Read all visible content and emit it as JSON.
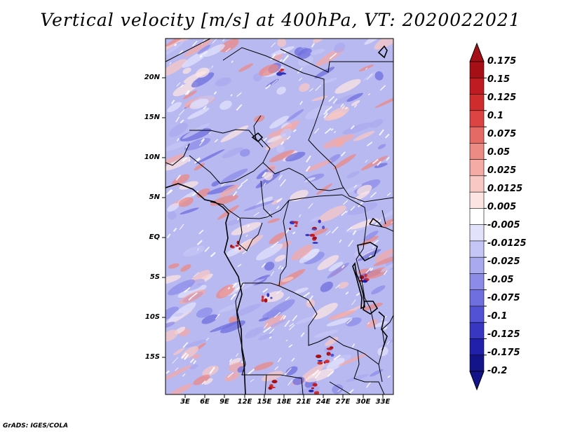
{
  "title": "Vertical velocity [m/s] at 400hPa, VT: 2020022021",
  "credit": "GrADS: IGES/COLA",
  "map": {
    "y_tick_labels": [
      "20N",
      "15N",
      "10N",
      "5N",
      "EQ",
      "5S",
      "10S",
      "15S"
    ],
    "x_tick_labels": [
      "3E",
      "6E",
      "9E",
      "12E",
      "15E",
      "18E",
      "21E",
      "24E",
      "27E",
      "30E",
      "33E"
    ]
  },
  "colorbar": {
    "labels": [
      "0.175",
      "0.15",
      "0.125",
      "0.1",
      "0.075",
      "0.05",
      "0.025",
      "0.0125",
      "0.005",
      "-0.005",
      "-0.0125",
      "-0.025",
      "-0.05",
      "-0.075",
      "-0.1",
      "-0.125",
      "-0.175",
      "-0.2"
    ],
    "colors": [
      "#a50f15",
      "#bf1b22",
      "#cf2d2d",
      "#dc4444",
      "#e46a66",
      "#ec8a84",
      "#f4aaa5",
      "#f8c8c4",
      "#fce4e2",
      "#ffffff",
      "#e2e2fb",
      "#c6c6f6",
      "#a9a9ef",
      "#8c8ce8",
      "#6f6fdf",
      "#5252d4",
      "#3737c2",
      "#2020aa",
      "#14148a"
    ]
  }
}
